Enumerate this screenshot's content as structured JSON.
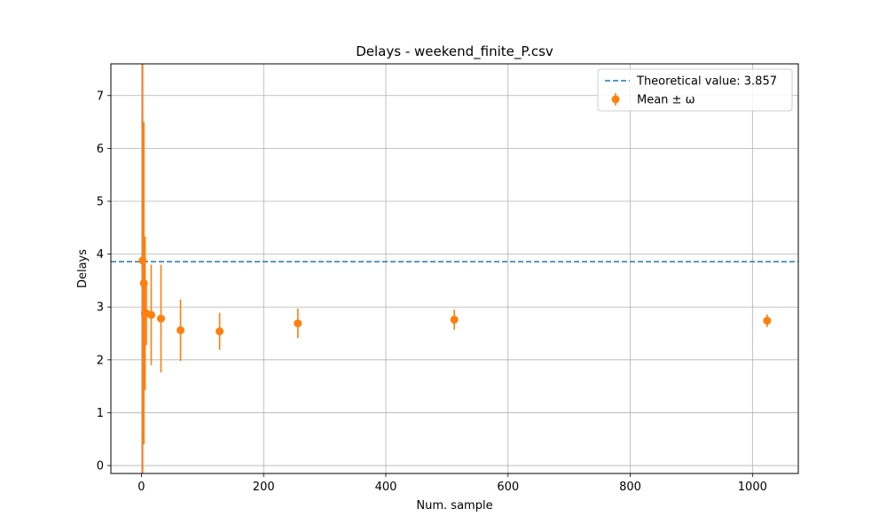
{
  "chart_data": {
    "type": "scatter",
    "title": "Delays - weekend_finite_P.csv",
    "xlabel": "Num. sample",
    "ylabel": "Delays",
    "xlim": [
      -50,
      1075
    ],
    "ylim": [
      -0.15,
      7.6
    ],
    "xticks": [
      0,
      200,
      400,
      600,
      800,
      1000
    ],
    "yticks": [
      0,
      1,
      2,
      3,
      4,
      5,
      6,
      7
    ],
    "grid": true,
    "legend_position": "top-right",
    "reference_line": {
      "name": "Theoretical value: 3.857",
      "value": 3.857,
      "color": "#1f77b4",
      "style": "dashed"
    },
    "series": [
      {
        "name": "Mean ± ω",
        "color": "#ff7f0e",
        "points": [
          {
            "x": 2,
            "y": 3.88,
            "err": 4.2
          },
          {
            "x": 4,
            "y": 3.45,
            "err": 3.05
          },
          {
            "x": 6,
            "y": 2.88,
            "err": 1.45
          },
          {
            "x": 8,
            "y": 2.88,
            "err": 0.6
          },
          {
            "x": 16,
            "y": 2.85,
            "err": 0.95
          },
          {
            "x": 32,
            "y": 2.78,
            "err": 1.02
          },
          {
            "x": 64,
            "y": 2.56,
            "err": 0.58
          },
          {
            "x": 128,
            "y": 2.54,
            "err": 0.35
          },
          {
            "x": 256,
            "y": 2.69,
            "err": 0.28
          },
          {
            "x": 512,
            "y": 2.76,
            "err": 0.19
          },
          {
            "x": 1024,
            "y": 2.74,
            "err": 0.12
          }
        ]
      }
    ]
  }
}
